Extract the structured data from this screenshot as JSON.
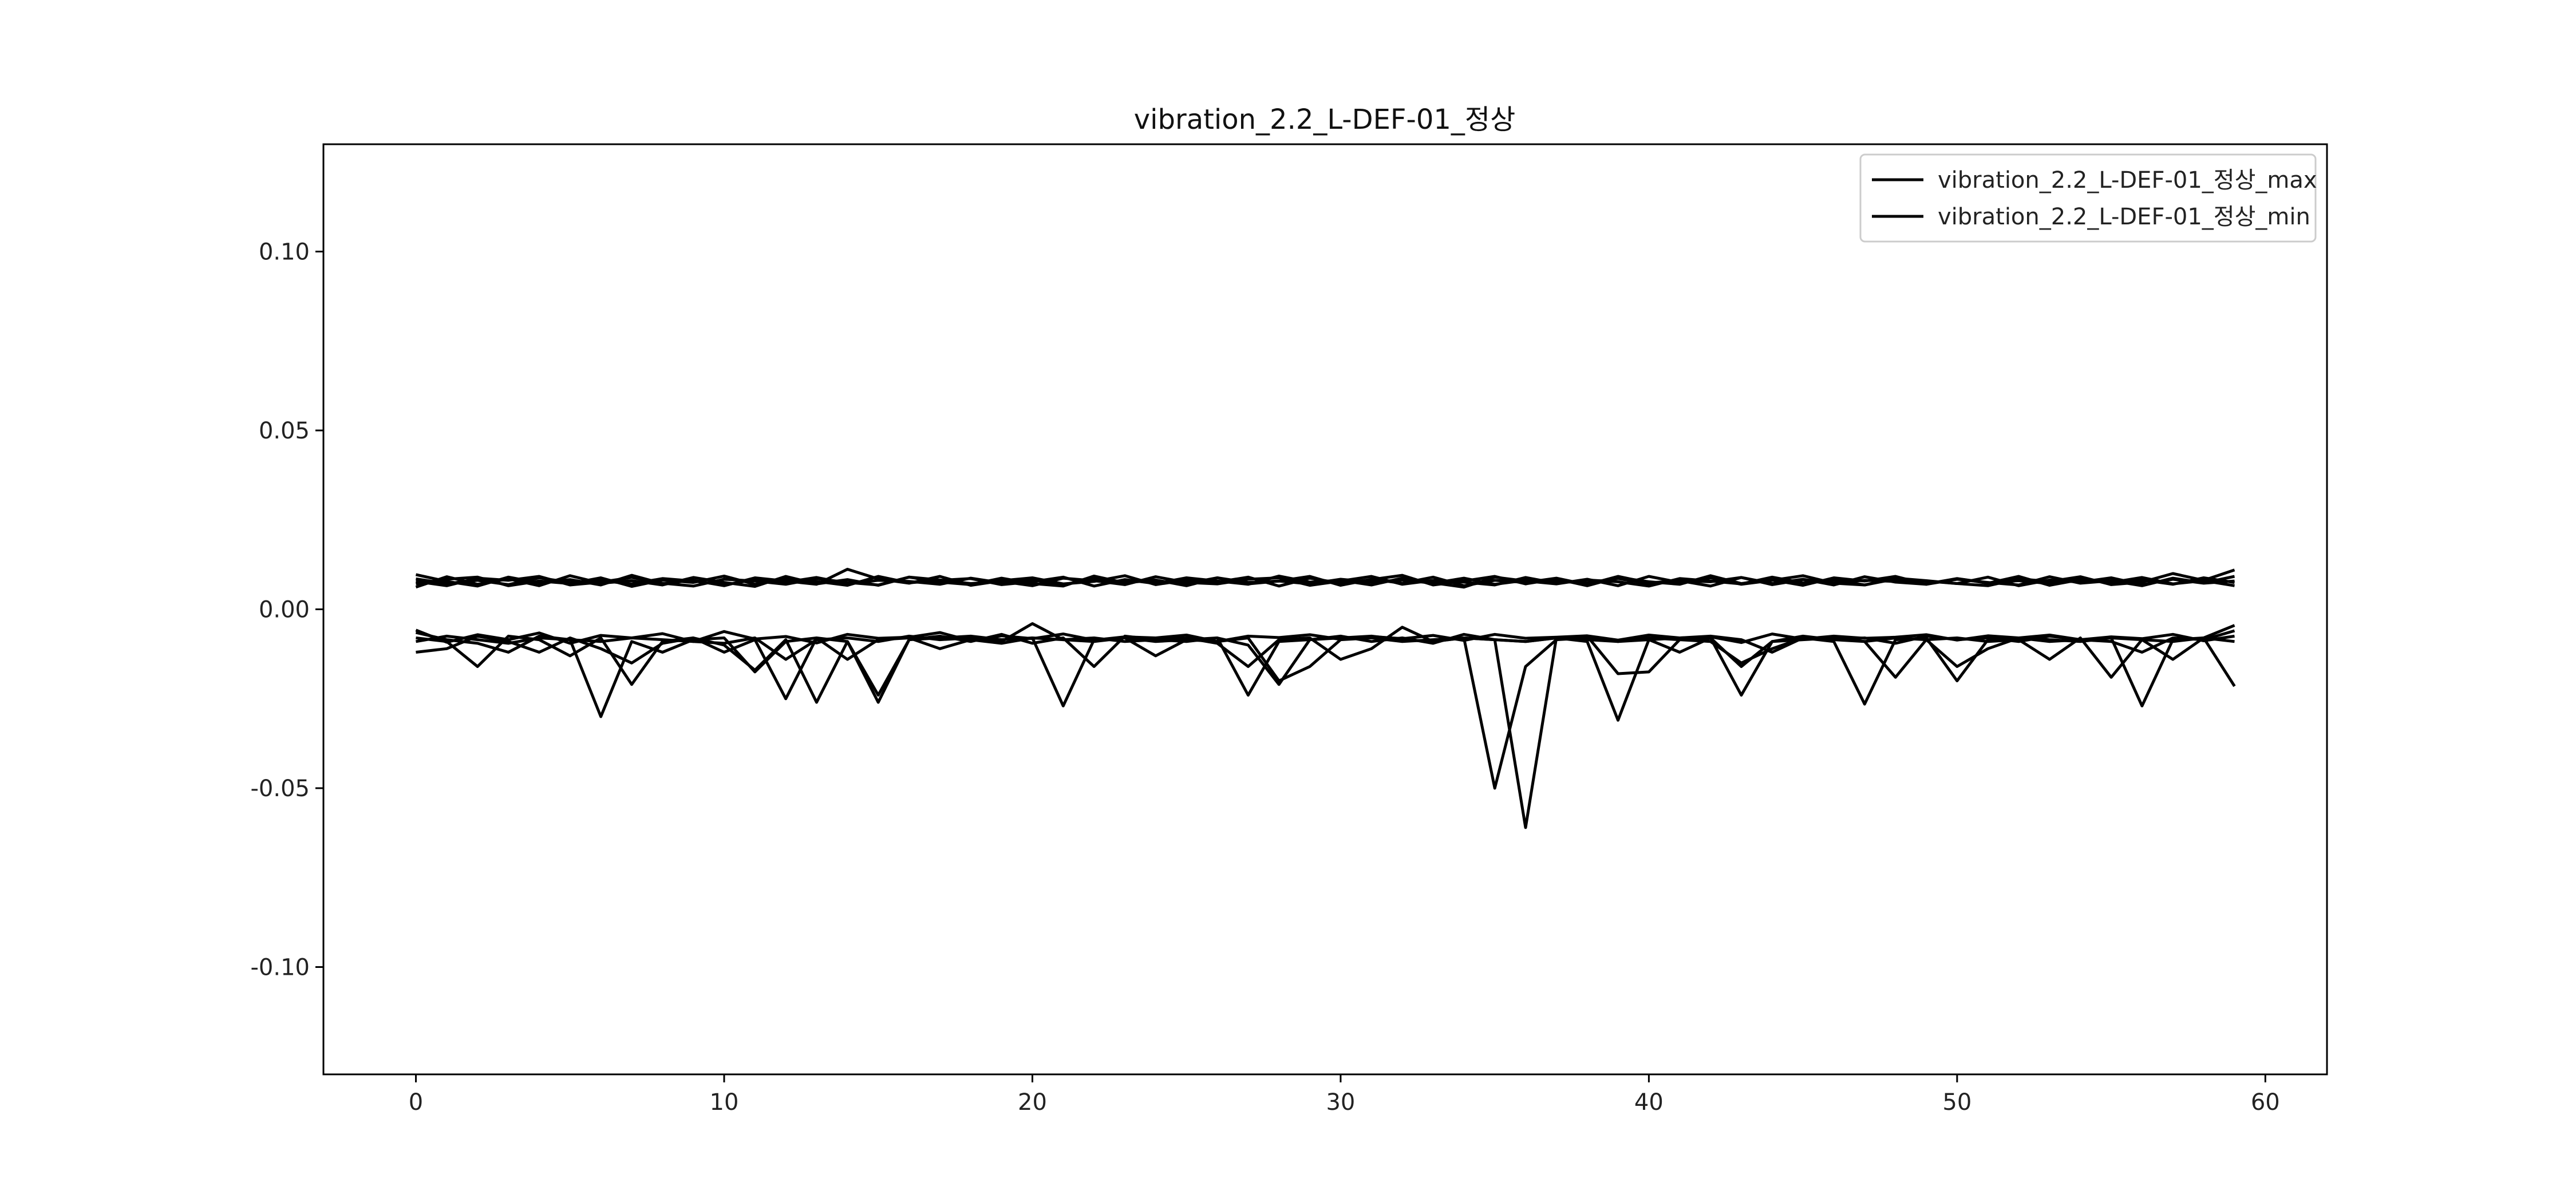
{
  "chart_data": {
    "type": "line",
    "title": "vibration_2.2_L-DEF-01_정상",
    "xlabel": "",
    "ylabel": "",
    "xlim": [
      -3,
      62
    ],
    "ylim": [
      -0.13,
      0.13
    ],
    "x_ticks": [
      0,
      10,
      20,
      30,
      40,
      50,
      60
    ],
    "x_tick_labels": [
      "0",
      "10",
      "20",
      "30",
      "40",
      "50",
      "60"
    ],
    "y_ticks": [
      -0.1,
      -0.05,
      0.0,
      0.05,
      0.1
    ],
    "y_tick_labels": [
      "-0.10",
      "-0.05",
      "0.00",
      "0.05",
      "0.10"
    ],
    "grid": false,
    "legend_position": "top-right",
    "line_color": "#000000",
    "x": [
      0,
      1,
      2,
      3,
      4,
      5,
      6,
      7,
      8,
      9,
      10,
      11,
      12,
      13,
      14,
      15,
      16,
      17,
      18,
      19,
      20,
      21,
      22,
      23,
      24,
      25,
      26,
      27,
      28,
      29,
      30,
      31,
      32,
      33,
      34,
      35,
      36,
      37,
      38,
      39,
      40,
      41,
      42,
      43,
      44,
      45,
      46,
      47,
      48,
      49,
      50,
      51,
      52,
      53,
      54,
      55,
      56,
      57,
      58,
      59
    ],
    "series": [
      {
        "name": "vibration_2.2_L-DEF-01_정상_max",
        "values": [
          0.0085,
          0.0072,
          0.0081,
          0.0069,
          0.0088,
          0.0075,
          0.008,
          0.0071,
          0.0086,
          0.0079,
          0.0068,
          0.0083,
          0.0076,
          0.0089,
          0.0072,
          0.0081,
          0.0078,
          0.007,
          0.0087,
          0.0074,
          0.0082,
          0.0069,
          0.0085,
          0.0077,
          0.008,
          0.0072,
          0.0088,
          0.0075,
          0.0079,
          0.0071,
          0.0084,
          0.0076,
          0.0082,
          0.0073,
          0.0087,
          0.007,
          0.0081,
          0.0078,
          0.0074,
          0.0086,
          0.0072,
          0.008,
          0.0077,
          0.0089,
          0.0069,
          0.0083,
          0.0075,
          0.0081,
          0.0078,
          0.0071,
          0.0086,
          0.0074,
          0.008,
          0.0072,
          0.0085,
          0.0077,
          0.0082,
          0.007,
          0.0088,
          0.0075
        ]
      },
      {
        "name": "",
        "values": [
          0.0062,
          0.0091,
          0.007,
          0.0085,
          0.0066,
          0.0094,
          0.0073,
          0.008,
          0.0068,
          0.0089,
          0.0075,
          0.0064,
          0.0092,
          0.0071,
          0.0083,
          0.0067,
          0.009,
          0.0076,
          0.0069,
          0.0087,
          0.0072,
          0.0065,
          0.0093,
          0.0074,
          0.0082,
          0.0066,
          0.0088,
          0.0071,
          0.0079,
          0.0092,
          0.0067,
          0.0084,
          0.0073,
          0.009,
          0.0066,
          0.0081,
          0.0075,
          0.0087,
          0.0069,
          0.0092,
          0.0074,
          0.008,
          0.0065,
          0.0089,
          0.0072,
          0.0084,
          0.0068,
          0.0091,
          0.0076,
          0.007,
          0.0086,
          0.0073,
          0.0092,
          0.0067,
          0.0083,
          0.0075,
          0.0089,
          0.0071,
          0.008,
          0.0066
        ]
      },
      {
        "name": "",
        "values": [
          0.0097,
          0.0078,
          0.0065,
          0.009,
          0.0074,
          0.0083,
          0.0068,
          0.0095,
          0.0072,
          0.0081,
          0.0066,
          0.0088,
          0.0079,
          0.007,
          0.0112,
          0.0085,
          0.0073,
          0.0092,
          0.0067,
          0.008,
          0.0088,
          0.0071,
          0.0078,
          0.0094,
          0.0069,
          0.0082,
          0.0076,
          0.009,
          0.0065,
          0.0087,
          0.0073,
          0.0083,
          0.0095,
          0.0068,
          0.0079,
          0.0092,
          0.0071,
          0.0085,
          0.0066,
          0.0089,
          0.0077,
          0.007,
          0.0094,
          0.0072,
          0.0082,
          0.0067,
          0.0088,
          0.0079,
          0.0092,
          0.007,
          0.0084,
          0.0075,
          0.0068,
          0.0091,
          0.0073,
          0.008,
          0.0066,
          0.0087,
          0.0074,
          0.0092
        ]
      },
      {
        "name": "",
        "values": [
          0.0071,
          0.0084,
          0.009,
          0.0066,
          0.0079,
          0.0072,
          0.0088,
          0.0064,
          0.0082,
          0.0075,
          0.0093,
          0.007,
          0.0085,
          0.0078,
          0.0067,
          0.0092,
          0.0074,
          0.0081,
          0.0086,
          0.0069,
          0.0077,
          0.009,
          0.0065,
          0.0083,
          0.0072,
          0.0088,
          0.0079,
          0.007,
          0.0093,
          0.0076,
          0.0081,
          0.0068,
          0.0087,
          0.0074,
          0.0062,
          0.009,
          0.0079,
          0.0071,
          0.0084,
          0.0066,
          0.0092,
          0.0075,
          0.0088,
          0.007,
          0.0081,
          0.0094,
          0.0073,
          0.0068,
          0.0085,
          0.0079,
          0.0072,
          0.009,
          0.0066,
          0.0082,
          0.0076,
          0.0088,
          0.0069,
          0.0084,
          0.0073,
          0.0079
        ]
      },
      {
        "name": "",
        "values": [
          0.0078,
          0.0066,
          0.0087,
          0.0081,
          0.0092,
          0.0068,
          0.0076,
          0.0089,
          0.0073,
          0.0065,
          0.0084,
          0.0079,
          0.007,
          0.0086,
          0.0075,
          0.0068,
          0.009,
          0.0082,
          0.0072,
          0.0078,
          0.0066,
          0.0087,
          0.008,
          0.0069,
          0.0091,
          0.0075,
          0.0071,
          0.0084,
          0.0088,
          0.0067,
          0.0079,
          0.0092,
          0.007,
          0.0081,
          0.0076,
          0.0068,
          0.0089,
          0.0073,
          0.0082,
          0.0077,
          0.0065,
          0.0086,
          0.0079,
          0.0071,
          0.009,
          0.0074,
          0.0083,
          0.0068,
          0.0087,
          0.008,
          0.0072,
          0.0066,
          0.0085,
          0.0078,
          0.0091,
          0.0069,
          0.0076,
          0.01,
          0.0081,
          0.011
        ]
      },
      {
        "name": "vibration_2.2_L-DEF-01_정상_min",
        "values": [
          -0.0058,
          -0.0092,
          -0.0071,
          -0.0085,
          -0.0066,
          -0.0095,
          -0.0073,
          -0.008,
          -0.0068,
          -0.009,
          -0.0062,
          -0.0083,
          -0.0076,
          -0.0094,
          -0.007,
          -0.0081,
          -0.0078,
          -0.0065,
          -0.0088,
          -0.0074,
          -0.0082,
          -0.0069,
          -0.0086,
          -0.0077,
          -0.008,
          -0.0072,
          -0.009,
          -0.0075,
          -0.0079,
          -0.0071,
          -0.0084,
          -0.0076,
          -0.0082,
          -0.0073,
          -0.0087,
          -0.007,
          -0.0081,
          -0.0078,
          -0.0074,
          -0.0086,
          -0.0072,
          -0.008,
          -0.0077,
          -0.0093,
          -0.0069,
          -0.0083,
          -0.0075,
          -0.0081,
          -0.0078,
          -0.0071,
          -0.0086,
          -0.0074,
          -0.008,
          -0.0072,
          -0.0085,
          -0.0077,
          -0.0082,
          -0.007,
          -0.0088,
          -0.0075
        ]
      },
      {
        "name": "",
        "values": [
          -0.012,
          -0.011,
          -0.0075,
          -0.009,
          -0.012,
          -0.008,
          -0.011,
          -0.015,
          -0.0095,
          -0.008,
          -0.01,
          -0.017,
          -0.0085,
          -0.026,
          -0.009,
          -0.024,
          -0.0085,
          -0.0075,
          -0.009,
          -0.007,
          -0.0095,
          -0.008,
          -0.016,
          -0.0075,
          -0.0085,
          -0.009,
          -0.008,
          -0.01,
          -0.021,
          -0.0085,
          -0.0075,
          -0.009,
          -0.008,
          -0.0095,
          -0.007,
          -0.0085,
          -0.009,
          -0.008,
          -0.0075,
          -0.018,
          -0.0175,
          -0.0085,
          -0.008,
          -0.024,
          -0.009,
          -0.0075,
          -0.0085,
          -0.008,
          -0.0095,
          -0.0075,
          -0.0085,
          -0.008,
          -0.009,
          -0.0075,
          -0.0085,
          -0.009,
          -0.012,
          -0.008,
          -0.0085,
          -0.006
        ]
      },
      {
        "name": "",
        "values": [
          -0.008,
          -0.009,
          -0.016,
          -0.0075,
          -0.0085,
          -0.013,
          -0.008,
          -0.021,
          -0.009,
          -0.008,
          -0.012,
          -0.0085,
          -0.025,
          -0.008,
          -0.009,
          -0.026,
          -0.0085,
          -0.008,
          -0.0075,
          -0.0085,
          -0.008,
          -0.027,
          -0.0085,
          -0.008,
          -0.009,
          -0.0085,
          -0.008,
          -0.024,
          -0.009,
          -0.0085,
          -0.008,
          -0.0075,
          -0.0085,
          -0.009,
          -0.008,
          -0.0085,
          -0.061,
          -0.008,
          -0.009,
          -0.031,
          -0.0085,
          -0.008,
          -0.0075,
          -0.0085,
          -0.012,
          -0.008,
          -0.009,
          -0.0265,
          -0.0085,
          -0.008,
          -0.02,
          -0.0085,
          -0.008,
          -0.009,
          -0.0085,
          -0.008,
          -0.027,
          -0.0085,
          -0.008,
          -0.0215
        ]
      },
      {
        "name": "",
        "values": [
          -0.0065,
          -0.0085,
          -0.0095,
          -0.012,
          -0.0075,
          -0.0085,
          -0.03,
          -0.009,
          -0.012,
          -0.0085,
          -0.008,
          -0.0175,
          -0.009,
          -0.008,
          -0.014,
          -0.0085,
          -0.008,
          -0.011,
          -0.0085,
          -0.0095,
          -0.008,
          -0.0085,
          -0.009,
          -0.008,
          -0.013,
          -0.0085,
          -0.009,
          -0.008,
          -0.02,
          -0.016,
          -0.0085,
          -0.008,
          -0.009,
          -0.0085,
          -0.008,
          -0.05,
          -0.016,
          -0.0085,
          -0.008,
          -0.009,
          -0.0085,
          -0.012,
          -0.008,
          -0.016,
          -0.009,
          -0.0085,
          -0.008,
          -0.009,
          -0.019,
          -0.0085,
          -0.008,
          -0.009,
          -0.0085,
          -0.014,
          -0.008,
          -0.019,
          -0.0085,
          -0.014,
          -0.008,
          -0.009
        ]
      },
      {
        "name": "",
        "values": [
          -0.009,
          -0.0075,
          -0.0085,
          -0.0095,
          -0.008,
          -0.0085,
          -0.009,
          -0.008,
          -0.0085,
          -0.009,
          -0.0095,
          -0.008,
          -0.014,
          -0.0085,
          -0.008,
          -0.009,
          -0.0075,
          -0.0085,
          -0.008,
          -0.009,
          -0.004,
          -0.0085,
          -0.008,
          -0.009,
          -0.0085,
          -0.008,
          -0.0095,
          -0.016,
          -0.0085,
          -0.008,
          -0.014,
          -0.011,
          -0.005,
          -0.009,
          -0.008,
          -0.0085,
          -0.009,
          -0.008,
          -0.0085,
          -0.009,
          -0.008,
          -0.0085,
          -0.009,
          -0.015,
          -0.011,
          -0.008,
          -0.0085,
          -0.009,
          -0.008,
          -0.0085,
          -0.016,
          -0.011,
          -0.008,
          -0.0085,
          -0.009,
          -0.008,
          -0.0085,
          -0.009,
          -0.008,
          -0.0045
        ]
      }
    ]
  }
}
